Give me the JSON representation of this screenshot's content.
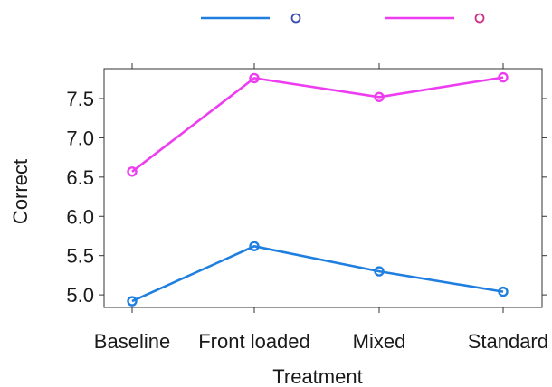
{
  "chart_data": {
    "type": "line",
    "categories": [
      "Baseline",
      "Front loaded",
      "Mixed",
      "Standard"
    ],
    "series": [
      {
        "values": [
          4.92,
          5.62,
          5.3,
          5.04
        ],
        "color": "#1f7fe0"
      },
      {
        "values": [
          6.57,
          7.76,
          7.52,
          7.77
        ],
        "color": "#ee3df0"
      }
    ],
    "xlabel": "Treatment",
    "ylabel": "Correct",
    "ylim": [
      4.84,
      7.88
    ],
    "yticks": [
      "5.0",
      "5.5",
      "6.0",
      "6.5",
      "7.0",
      "7.5"
    ],
    "legend": {
      "placement": "top",
      "marker": "circle-line"
    },
    "grid": false
  }
}
